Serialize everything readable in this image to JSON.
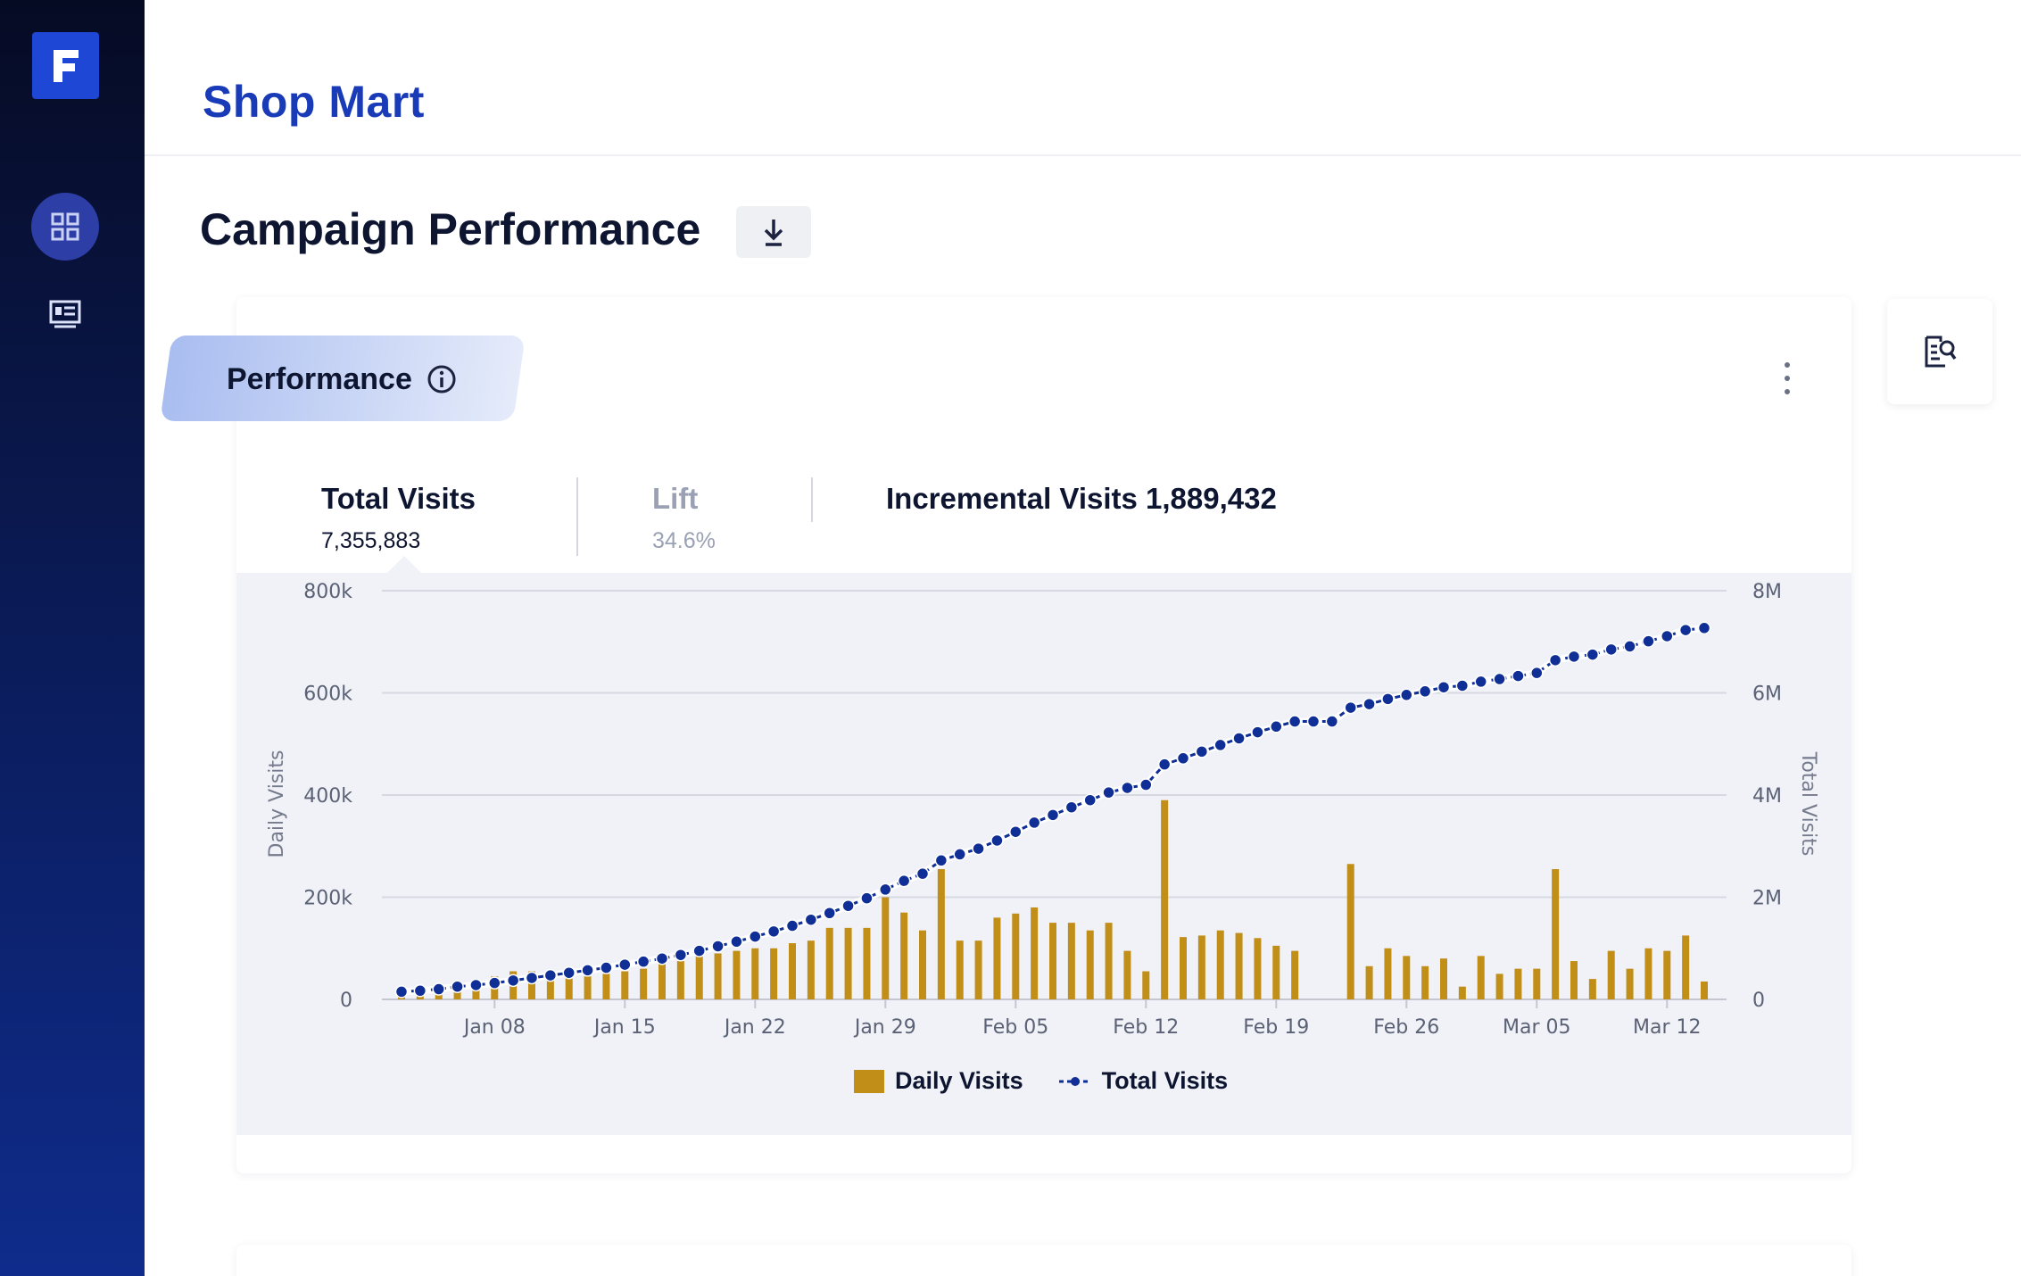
{
  "app": {
    "title": "Shop Mart",
    "logo_letter": "F"
  },
  "sidebar": {
    "items": [
      {
        "icon": "dashboard-icon",
        "active": true
      },
      {
        "icon": "report-card-icon",
        "active": false
      }
    ]
  },
  "page": {
    "title": "Campaign Performance",
    "download_icon": "download-icon"
  },
  "card": {
    "tab_label": "Performance",
    "info_icon": "info-icon",
    "menu_icon": "vertical-dots-icon",
    "side_tool_icon": "document-search-icon",
    "metrics": [
      {
        "label": "Total Visits",
        "value": "7,355,883",
        "active": true
      },
      {
        "label": "Lift",
        "value": "34.6%",
        "active": false
      },
      {
        "label": "Incremental Visits 1,889,432",
        "value": ""
      }
    ]
  },
  "colors": {
    "bar": "#c18e18",
    "line": "#0f2e96",
    "accent": "#1a3bb8",
    "chart_bg": "#f0f2f8"
  },
  "chart_data": {
    "type": "bar",
    "x_tick_labels": [
      "Jan 08",
      "Jan 15",
      "Jan 22",
      "Jan 29",
      "Feb 05",
      "Feb 12",
      "Feb 19",
      "Feb 26",
      "Mar 05",
      "Mar 12"
    ],
    "y_left": {
      "label": "Daily Visits",
      "ticks": [
        "0",
        "200k",
        "400k",
        "600k",
        "800k"
      ],
      "range": [
        0,
        800000
      ]
    },
    "y_right": {
      "label": "Total Visits",
      "ticks": [
        "0",
        "2M",
        "4M",
        "6M",
        "8M"
      ],
      "range": [
        0,
        8000000
      ]
    },
    "grid": true,
    "legend_position": "bottom",
    "legend": [
      "Daily Visits",
      "Total Visits"
    ],
    "series": [
      {
        "name": "Daily Visits",
        "type": "bar",
        "axis": "left",
        "values": [
          20000,
          22000,
          24000,
          35000,
          30000,
          45000,
          55000,
          55000,
          45000,
          42000,
          45000,
          50000,
          55000,
          60000,
          70000,
          75000,
          85000,
          90000,
          95000,
          100000,
          100000,
          110000,
          115000,
          140000,
          140000,
          140000,
          200000,
          170000,
          135000,
          255000,
          115000,
          115000,
          160000,
          168000,
          180000,
          150000,
          150000,
          135000,
          150000,
          95000,
          55000,
          390000,
          122000,
          125000,
          135000,
          130000,
          120000,
          105000,
          95000,
          0,
          0,
          265000,
          65000,
          100000,
          85000,
          65000,
          80000,
          25000,
          85000,
          50000,
          60000,
          60000,
          255000,
          75000,
          40000,
          95000,
          60000,
          100000,
          95000,
          125000,
          35000
        ]
      },
      {
        "name": "Total Visits",
        "type": "line",
        "axis": "right",
        "values": [
          150000,
          170000,
          200000,
          250000,
          280000,
          320000,
          370000,
          420000,
          470000,
          520000,
          570000,
          620000,
          680000,
          740000,
          800000,
          870000,
          950000,
          1040000,
          1130000,
          1230000,
          1330000,
          1440000,
          1560000,
          1690000,
          1830000,
          1980000,
          2150000,
          2320000,
          2460000,
          2720000,
          2840000,
          2950000,
          3110000,
          3280000,
          3460000,
          3610000,
          3760000,
          3900000,
          4050000,
          4140000,
          4200000,
          4600000,
          4720000,
          4850000,
          4980000,
          5110000,
          5230000,
          5340000,
          5440000,
          5440000,
          5440000,
          5710000,
          5780000,
          5880000,
          5960000,
          6030000,
          6110000,
          6140000,
          6220000,
          6270000,
          6330000,
          6390000,
          6640000,
          6710000,
          6750000,
          6850000,
          6910000,
          7010000,
          7110000,
          7230000,
          7270000
        ]
      }
    ]
  }
}
